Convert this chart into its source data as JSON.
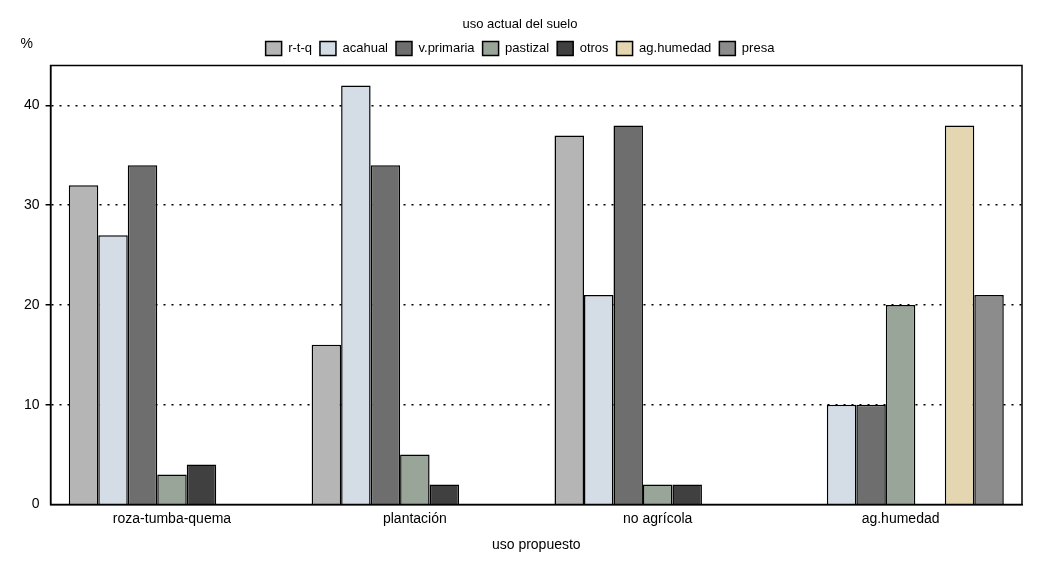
{
  "chart_data": {
    "type": "bar",
    "legend_title": "uso actual del suelo",
    "xlabel": "uso propuesto",
    "ylabel": "%",
    "categories": [
      "roza-tumba-quema",
      "plantación",
      "no agrícola",
      "ag.humedad"
    ],
    "series": [
      {
        "name": "r-t-q",
        "color": "#b5b5b5",
        "values": [
          32,
          16,
          37,
          null
        ]
      },
      {
        "name": "acahual",
        "color": "#d4dce6",
        "values": [
          27,
          42,
          21,
          10
        ]
      },
      {
        "name": "v.primaria",
        "color": "#6e6e6e",
        "values": [
          34,
          34,
          38,
          10
        ]
      },
      {
        "name": "pastizal",
        "color": "#9aa59a",
        "values": [
          3,
          5,
          2,
          20
        ]
      },
      {
        "name": "otros",
        "color": "#404040",
        "values": [
          4,
          2,
          2,
          null
        ]
      },
      {
        "name": "ag.humedad",
        "color": "#e3d6b0",
        "values": [
          null,
          null,
          null,
          38
        ]
      },
      {
        "name": "presa",
        "color": "#8c8c8c",
        "values": [
          null,
          null,
          null,
          21
        ]
      }
    ],
    "ylim": [
      0,
      44
    ],
    "yticks": [
      0,
      10,
      20,
      30,
      40
    ],
    "grid": "y",
    "legend": "top"
  }
}
